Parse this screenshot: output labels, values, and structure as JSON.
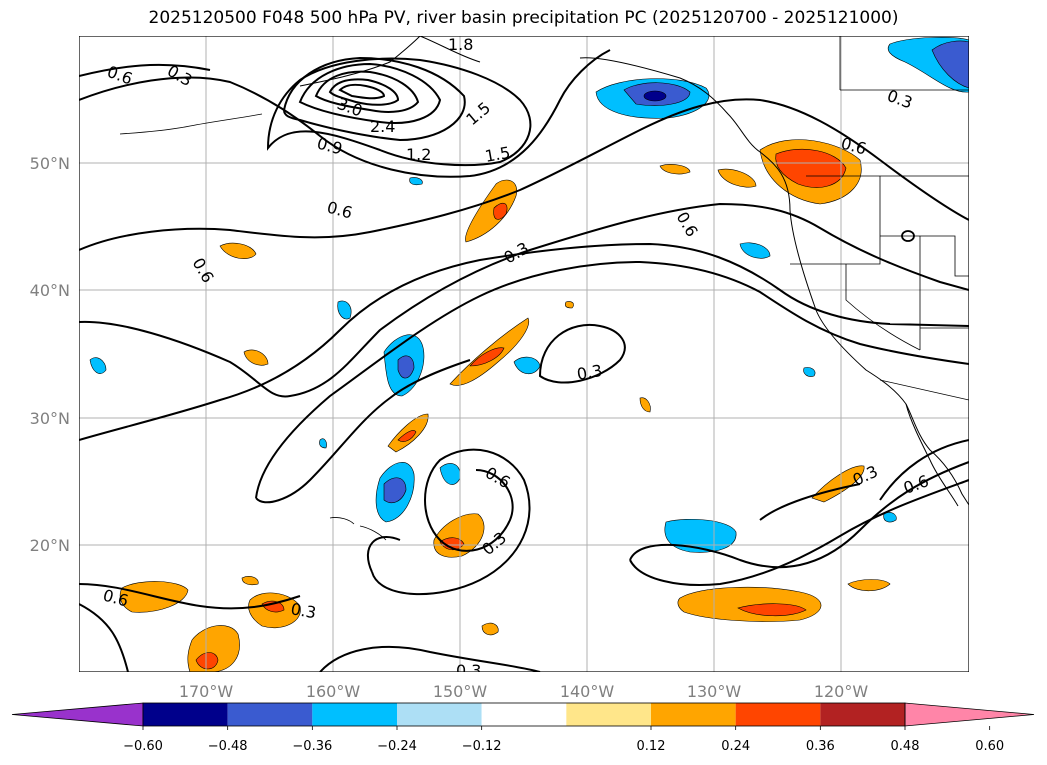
{
  "title": "2025120500 F048 500 hPa PV, river basin precipitation PC (2025120700 - 2025121000)",
  "latitude_labels": [
    "50°N",
    "40°N",
    "30°N",
    "20°N"
  ],
  "longitude_labels": [
    "170°W",
    "160°W",
    "150°W",
    "140°W",
    "130°W",
    "120°W"
  ],
  "contour_labels": [
    "0.6",
    "0.3",
    "1.8",
    "3.0",
    "2.4",
    "0.9",
    "1.2",
    "1.5",
    "1.5",
    "0.6",
    "0.6",
    "0.3",
    "0.6",
    "0.3",
    "0.6",
    "0.3",
    "0.6",
    "0.3",
    "0.3",
    "0.6",
    "0.6",
    "0.3",
    "0.3"
  ],
  "colorbar": {
    "tick_labels": [
      "−0.60",
      "−0.48",
      "−0.36",
      "−0.24",
      "−0.12",
      "0.12",
      "0.24",
      "0.36",
      "0.48",
      "0.60"
    ],
    "colors": [
      "#9932CC",
      "#00008B",
      "#3A5BD0",
      "#00BFFF",
      "#ADDFF5",
      "#FFFFFF",
      "#FFE68A",
      "#FFA500",
      "#FF4500",
      "#B22222",
      "#FF85A8"
    ]
  },
  "colors": {
    "neg_strong": "#00008B",
    "neg_mid": "#3A5BD0",
    "neg_light": "#00BFFF",
    "pos_light": "#FFA500",
    "pos_mid": "#FF4500",
    "grid": "#b0b0b0",
    "axis_label": "#808080"
  }
}
